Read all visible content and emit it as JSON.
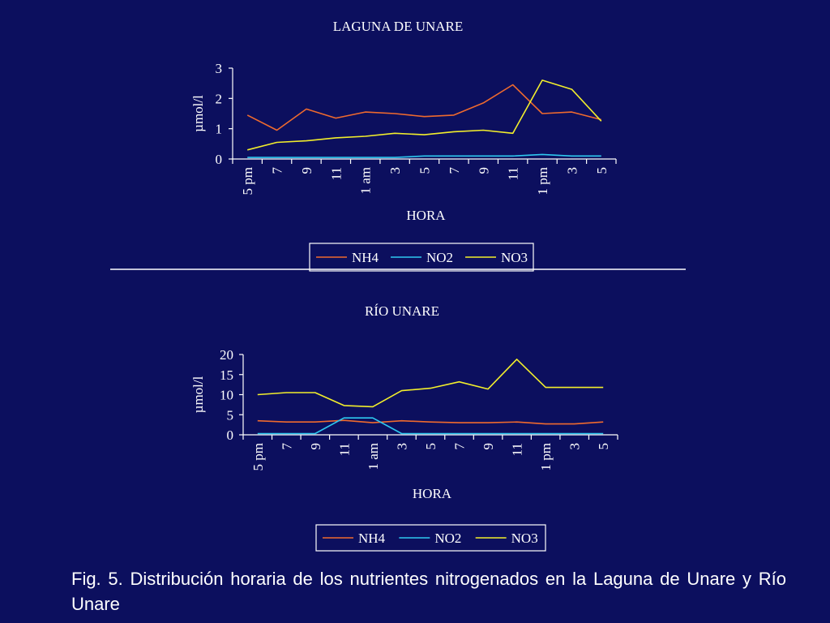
{
  "chart_data": [
    {
      "type": "line",
      "title": "LAGUNA DE UNARE",
      "xlabel": "HORA",
      "ylabel": "µmol/l",
      "ylim": [
        0,
        3
      ],
      "yticks": [
        0,
        1,
        2,
        3
      ],
      "categories": [
        "5 pm",
        "7",
        "9",
        "11",
        "1 am",
        "3",
        "5",
        "7",
        "9",
        "11",
        "1 pm",
        "3",
        "5"
      ],
      "series": [
        {
          "name": "NH4",
          "color": "#ef6a2e",
          "values": [
            1.45,
            0.95,
            1.65,
            1.35,
            1.55,
            1.5,
            1.4,
            1.45,
            1.85,
            2.45,
            1.5,
            1.55,
            1.3
          ]
        },
        {
          "name": "NO2",
          "color": "#2ec8ef",
          "values": [
            0.05,
            0.05,
            0.05,
            0.05,
            0.05,
            0.05,
            0.1,
            0.1,
            0.1,
            0.1,
            0.15,
            0.1,
            0.1
          ]
        },
        {
          "name": "NO3",
          "color": "#f2ee2c",
          "values": [
            0.3,
            0.55,
            0.6,
            0.7,
            0.75,
            0.85,
            0.8,
            0.9,
            0.95,
            0.85,
            2.6,
            2.3,
            1.25
          ]
        }
      ],
      "legend": [
        "NH4",
        "NO2",
        "NO3"
      ],
      "legend_position": "bottom"
    },
    {
      "type": "line",
      "title": "RÍO UNARE",
      "xlabel": "HORA",
      "ylabel": "µmol/l",
      "ylim": [
        0,
        20
      ],
      "yticks": [
        0,
        5,
        10,
        15,
        20
      ],
      "categories": [
        "5 pm",
        "7",
        "9",
        "11",
        "1 am",
        "3",
        "5",
        "7",
        "9",
        "11",
        "1 pm",
        "3",
        "5"
      ],
      "series": [
        {
          "name": "NH4",
          "color": "#ef6a2e",
          "values": [
            3.5,
            3.2,
            3.2,
            3.6,
            3.0,
            3.5,
            3.2,
            3.0,
            3.0,
            3.2,
            2.7,
            2.7,
            3.2
          ]
        },
        {
          "name": "NO2",
          "color": "#2ec8ef",
          "values": [
            0.3,
            0.3,
            0.3,
            4.2,
            4.2,
            0.3,
            0.3,
            0.3,
            0.3,
            0.3,
            0.3,
            0.3,
            0.3
          ]
        },
        {
          "name": "NO3",
          "color": "#f2ee2c",
          "values": [
            10,
            10.5,
            10.5,
            7.3,
            7.0,
            11,
            11.6,
            13.2,
            11.4,
            18.8,
            11.8,
            11.8,
            11.8
          ]
        }
      ],
      "legend": [
        "NH4",
        "NO2",
        "NO3"
      ],
      "legend_position": "bottom"
    }
  ],
  "caption": "Fig. 5. Distribución horaria de los nutrientes nitrogenados en la Laguna de Unare y Río Unare"
}
